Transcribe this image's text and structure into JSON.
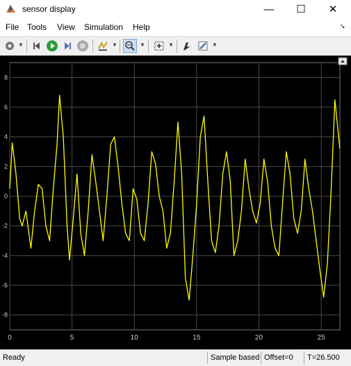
{
  "window": {
    "title": "sensor display",
    "controls": {
      "minimize": "—",
      "maximize": "☐",
      "close": "✕"
    }
  },
  "menu": {
    "items": [
      "File",
      "Tools",
      "View",
      "Simulation",
      "Help"
    ]
  },
  "toolbar": {
    "icons": [
      "settings-icon",
      "step-back-icon",
      "run-icon",
      "step-forward-icon",
      "stop-icon",
      "highlight-icon",
      "zoom-icon",
      "autoscale-icon",
      "style-icon",
      "edit-icon"
    ]
  },
  "status": {
    "state": "Ready",
    "mode": "Sample based",
    "offset": "Offset=0",
    "time": "T=26.500"
  },
  "colors": {
    "trace": "#ffff00",
    "plot_bg": "#000000",
    "grid": "#4a4a4a",
    "axis_text": "#cccccc"
  },
  "chart_data": {
    "type": "line",
    "title": "",
    "xlabel": "",
    "ylabel": "",
    "xlim": [
      0,
      26.5
    ],
    "ylim": [
      -9,
      9
    ],
    "xticks": [
      0,
      5,
      10,
      15,
      20,
      25
    ],
    "yticks": [
      -8,
      -6,
      -4,
      -2,
      0,
      2,
      4,
      6,
      8
    ],
    "grid": true,
    "series": [
      {
        "color": "#ffff00",
        "x": [
          0,
          0.2,
          0.5,
          0.8,
          1.0,
          1.3,
          1.7,
          2.0,
          2.3,
          2.6,
          2.9,
          3.2,
          3.5,
          3.8,
          4.0,
          4.3,
          4.6,
          4.8,
          5.1,
          5.4,
          5.7,
          6.0,
          6.3,
          6.6,
          6.9,
          7.2,
          7.5,
          7.8,
          8.1,
          8.4,
          8.7,
          9.0,
          9.3,
          9.6,
          9.9,
          10.2,
          10.5,
          10.8,
          11.1,
          11.4,
          11.7,
          12.0,
          12.3,
          12.6,
          12.9,
          13.2,
          13.5,
          13.8,
          14.1,
          14.4,
          14.7,
          15.0,
          15.3,
          15.6,
          15.9,
          16.2,
          16.5,
          16.8,
          17.1,
          17.4,
          17.7,
          18.0,
          18.3,
          18.6,
          18.9,
          19.2,
          19.5,
          19.8,
          20.1,
          20.4,
          20.7,
          21.0,
          21.3,
          21.6,
          21.9,
          22.2,
          22.5,
          22.8,
          23.1,
          23.4,
          23.7,
          24.0,
          24.3,
          24.6,
          24.9,
          25.2,
          25.5,
          25.8,
          26.1,
          26.5
        ],
        "y": [
          0.5,
          3.6,
          1.5,
          -1.5,
          -2.0,
          -1.0,
          -3.5,
          -1.0,
          0.8,
          0.5,
          -2.0,
          -3.0,
          0.5,
          3.5,
          6.8,
          4.0,
          -2.0,
          -4.3,
          -1.5,
          1.5,
          -2.5,
          -4.0,
          -1.0,
          2.8,
          1.0,
          -1.0,
          -3.0,
          0.0,
          3.5,
          4.0,
          2.0,
          -0.5,
          -2.5,
          -3.0,
          0.5,
          -0.2,
          -2.5,
          -3.0,
          -0.5,
          3.0,
          2.2,
          0.0,
          -1.0,
          -3.5,
          -2.5,
          1.0,
          5.0,
          1.5,
          -5.5,
          -7.0,
          -4.0,
          -0.5,
          4.0,
          5.4,
          1.0,
          -3.0,
          -3.8,
          -2.0,
          1.5,
          3.0,
          1.0,
          -4.0,
          -3.0,
          -1.0,
          2.5,
          0.5,
          -1.0,
          -1.8,
          -0.5,
          2.5,
          1.0,
          -2.0,
          -3.5,
          -4.0,
          -0.5,
          3.0,
          1.5,
          -1.5,
          -2.5,
          -1.0,
          2.5,
          0.5,
          -1.0,
          -3.0,
          -5.0,
          -6.8,
          -4.5,
          0.5,
          6.5,
          3.2
        ]
      }
    ]
  }
}
